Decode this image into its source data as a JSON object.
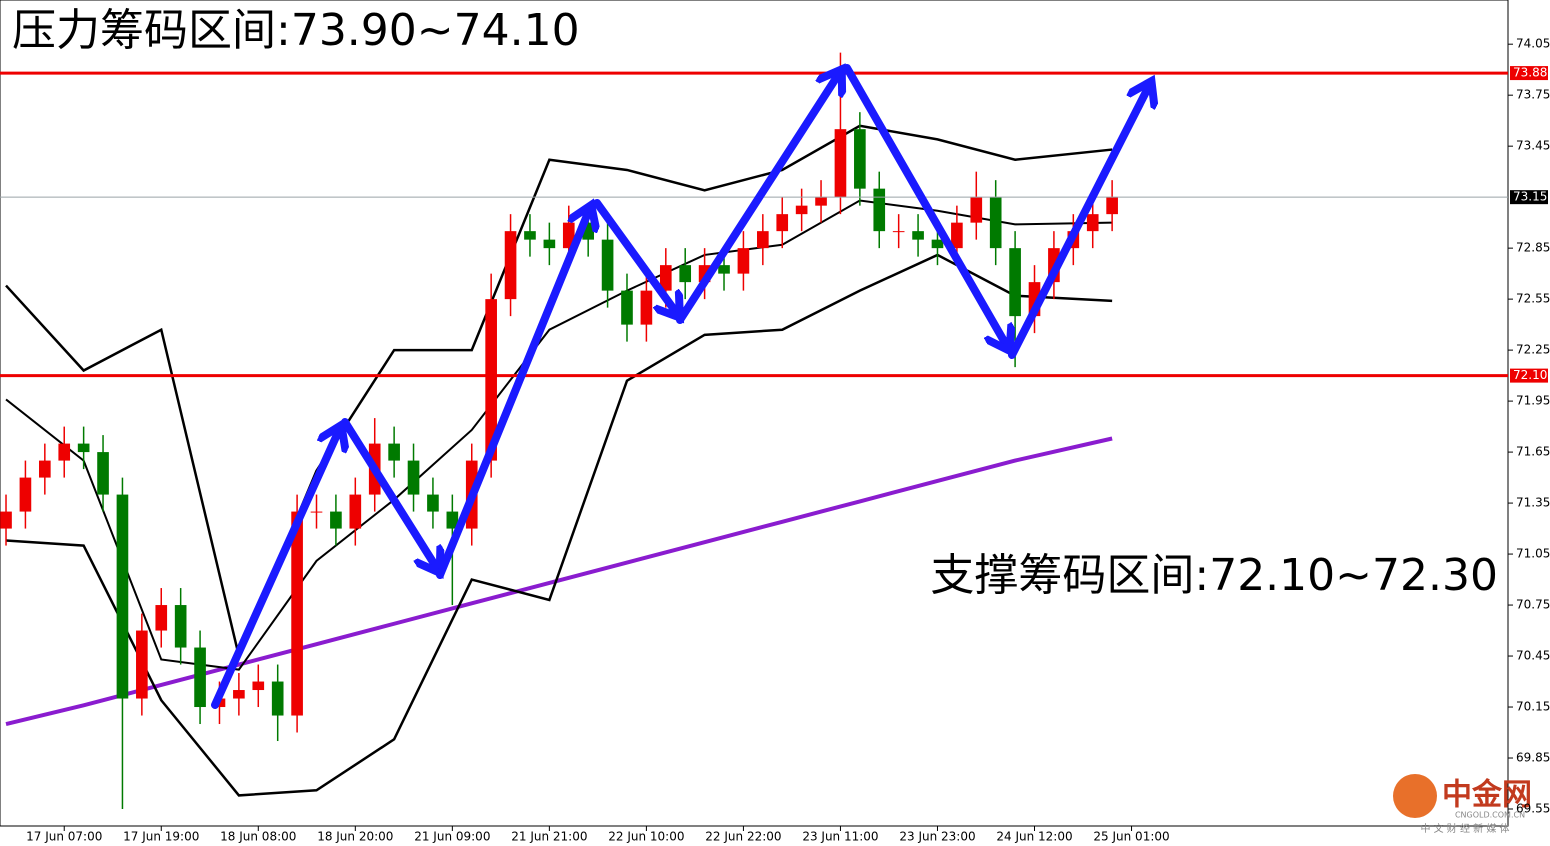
{
  "chart_data": {
    "type": "candlestick",
    "annotations": [
      "压力筹码区间:73.90~74.10",
      "支撑筹码区间:72.10~72.30"
    ],
    "xlim": [
      -0.31,
      77.4
    ],
    "ylim": [
      69.45,
      74.31
    ],
    "xticks": [
      {
        "value": 3,
        "label": "17 Jun 07:00"
      },
      {
        "value": 8,
        "label": "17 Jun 19:00"
      },
      {
        "value": 13,
        "label": "18 Jun 08:00"
      },
      {
        "value": 18,
        "label": "18 Jun 20:00"
      },
      {
        "value": 23,
        "label": "21 Jun 09:00"
      },
      {
        "value": 28,
        "label": "21 Jun 21:00"
      },
      {
        "value": 33,
        "label": "22 Jun 10:00"
      },
      {
        "value": 38,
        "label": "22 Jun 22:00"
      },
      {
        "value": 43,
        "label": "23 Jun 11:00"
      },
      {
        "value": 48,
        "label": "23 Jun 23:00"
      },
      {
        "value": 53,
        "label": "24 Jun 12:00"
      },
      {
        "value": 58,
        "label": "25 Jun 01:00"
      }
    ],
    "yticks": [
      74.05,
      73.75,
      73.45,
      72.85,
      72.55,
      72.25,
      71.95,
      71.65,
      71.35,
      71.05,
      70.75,
      70.45,
      70.15,
      69.85,
      69.55
    ],
    "up_color": "#ee0000",
    "down_color": "#007a00",
    "open": [
      71.2,
      71.3,
      71.5,
      71.6,
      71.7,
      71.65,
      71.4,
      70.2,
      70.6,
      70.75,
      70.5,
      70.15,
      70.2,
      70.25,
      70.3,
      70.1,
      71.3,
      71.3,
      71.2,
      71.4,
      71.7,
      71.6,
      71.4,
      71.3,
      71.2,
      71.6,
      72.55,
      72.95,
      72.9,
      72.85,
      73.0,
      72.9,
      72.6,
      72.4,
      72.6,
      72.75,
      72.65,
      72.75,
      72.7,
      72.85,
      72.95,
      73.05,
      73.1,
      73.15,
      73.55,
      73.2,
      72.95,
      72.95,
      72.9,
      72.85,
      73.0,
      73.15,
      72.85,
      72.45,
      72.65,
      72.85,
      72.95,
      73.05
    ],
    "high": [
      71.4,
      71.6,
      71.7,
      71.8,
      71.8,
      71.75,
      71.5,
      70.7,
      70.85,
      70.85,
      70.6,
      70.3,
      70.35,
      70.4,
      70.4,
      71.4,
      71.4,
      71.4,
      71.5,
      71.85,
      71.8,
      71.7,
      71.5,
      71.4,
      71.7,
      72.7,
      73.05,
      73.05,
      73.0,
      73.1,
      73.1,
      73.0,
      72.7,
      72.7,
      72.85,
      72.85,
      72.85,
      72.85,
      72.95,
      73.05,
      73.15,
      73.2,
      73.25,
      74.0,
      73.65,
      73.3,
      73.05,
      73.05,
      73.0,
      73.1,
      73.3,
      73.25,
      72.95,
      72.75,
      72.95,
      73.05,
      73.15,
      73.25
    ],
    "low": [
      71.1,
      71.2,
      71.4,
      71.5,
      71.55,
      71.3,
      69.55,
      70.1,
      70.5,
      70.4,
      70.05,
      70.05,
      70.1,
      70.15,
      69.95,
      70.0,
      71.2,
      71.1,
      71.1,
      71.3,
      71.5,
      71.3,
      71.2,
      70.75,
      71.1,
      71.5,
      72.45,
      72.8,
      72.75,
      72.75,
      72.8,
      72.5,
      72.3,
      72.3,
      72.5,
      72.55,
      72.55,
      72.6,
      72.6,
      72.75,
      72.85,
      72.95,
      73.0,
      73.05,
      73.1,
      72.85,
      72.85,
      72.8,
      72.75,
      72.75,
      72.9,
      72.75,
      72.15,
      72.35,
      72.55,
      72.75,
      72.85,
      72.95
    ],
    "close": [
      71.3,
      71.5,
      71.6,
      71.7,
      71.65,
      71.4,
      70.2,
      70.6,
      70.75,
      70.5,
      70.15,
      70.2,
      70.25,
      70.3,
      70.1,
      71.3,
      71.3,
      71.2,
      71.4,
      71.7,
      71.6,
      71.4,
      71.3,
      71.2,
      71.6,
      72.55,
      72.95,
      72.9,
      72.85,
      73.0,
      72.9,
      72.6,
      72.4,
      72.6,
      72.75,
      72.65,
      72.75,
      72.7,
      72.85,
      72.95,
      73.05,
      73.1,
      73.15,
      73.55,
      73.2,
      72.95,
      72.95,
      72.9,
      72.85,
      73.0,
      73.15,
      72.85,
      72.45,
      72.65,
      72.85,
      72.95,
      73.05,
      73.15
    ],
    "indicator_x": [
      0,
      4,
      8,
      12,
      16,
      20,
      24,
      28,
      32,
      36,
      40,
      44,
      48,
      52,
      57
    ],
    "indicators": [
      {
        "color": "#8a1ccf",
        "width": 4,
        "values": [
          70.05,
          70.16,
          70.28,
          70.4,
          70.52,
          70.64,
          70.76,
          70.88,
          71.0,
          71.12,
          71.24,
          71.36,
          71.48,
          71.6,
          71.73
        ]
      },
      {
        "color": "#000000",
        "width": 2.5,
        "values": [
          72.63,
          72.13,
          72.37,
          70.45,
          71.54,
          72.25,
          72.25,
          73.37,
          73.31,
          73.19,
          73.31,
          73.57,
          73.49,
          73.37,
          73.43
        ]
      },
      {
        "color": "#000000",
        "width": 2.5,
        "values": [
          71.13,
          71.1,
          70.19,
          69.63,
          69.66,
          69.96,
          70.9,
          70.78,
          72.07,
          72.34,
          72.37,
          72.6,
          72.81,
          72.57,
          72.54
        ]
      },
      {
        "color": "#000000",
        "width": 2,
        "values": [
          71.96,
          71.6,
          70.43,
          70.37,
          71.01,
          71.37,
          71.78,
          72.37,
          72.6,
          72.81,
          72.87,
          73.13,
          73.07,
          72.99,
          73.0
        ]
      }
    ],
    "price_lines": [
      {
        "value": 73.88,
        "color": "#ee0000",
        "box": "#ee0000"
      },
      {
        "value": {
          "value": 72.1,
          "label": "72.10"
        },
        "color": "#ee0000",
        "box": "#ee0000"
      },
      {
        "value": 73.15,
        "color": "#9aa3a8",
        "box": "#000000"
      }
    ]
  },
  "logo": {
    "name": "中金网",
    "url": "CNGOLD.COM.CN",
    "slogan": "中 文 财 经 新 媒 体"
  }
}
